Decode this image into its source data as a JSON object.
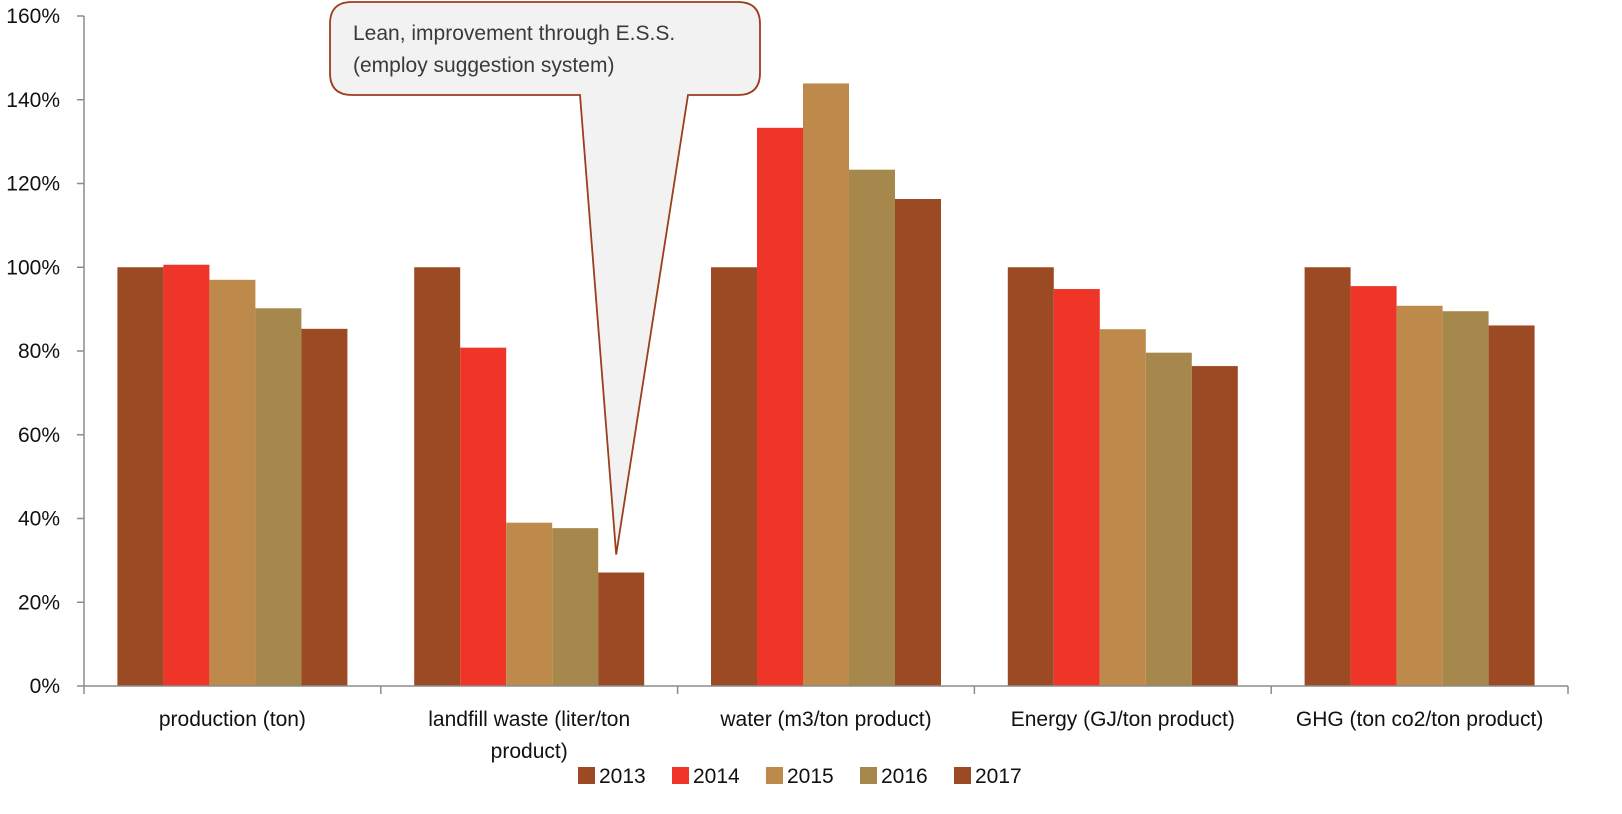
{
  "chart_data": {
    "type": "bar",
    "title": "",
    "xlabel": "",
    "ylabel": "",
    "ylim": [
      0,
      160
    ],
    "y_ticks": [
      "0%",
      "20%",
      "40%",
      "60%",
      "80%",
      "100%",
      "120%",
      "140%",
      "160%"
    ],
    "y_tick_values": [
      0,
      20,
      40,
      60,
      80,
      100,
      120,
      140,
      160
    ],
    "categories": [
      [
        "production (ton)"
      ],
      [
        "landfill waste (liter/ton",
        "product)"
      ],
      [
        "water (m3/ton product)"
      ],
      [
        "Energy (GJ/ton product)"
      ],
      [
        "GHG (ton co2/ton product)"
      ]
    ],
    "series": [
      {
        "name": "2013",
        "color": "#9C4A23",
        "values": [
          100,
          100,
          100,
          100,
          100
        ]
      },
      {
        "name": "2014",
        "color": "#EE3528",
        "values": [
          100.6,
          80.8,
          133.3,
          94.8,
          95.5
        ]
      },
      {
        "name": "2015",
        "color": "#BE8A4B",
        "values": [
          97.0,
          39.0,
          143.9,
          85.2,
          90.8
        ]
      },
      {
        "name": "2016",
        "color": "#A7884C",
        "values": [
          90.2,
          37.7,
          123.3,
          79.6,
          89.5
        ]
      },
      {
        "name": "2017",
        "color": "#9C4A23",
        "values": [
          85.3,
          27.1,
          116.3,
          76.4,
          86.1
        ]
      }
    ],
    "grid": false,
    "legend_position": "bottom",
    "annotation": {
      "lines": [
        "Lean, improvement through E.S.S.",
        "(employ suggestion system)"
      ],
      "points_to": {
        "category_index": 1,
        "series_index": 4
      }
    }
  }
}
